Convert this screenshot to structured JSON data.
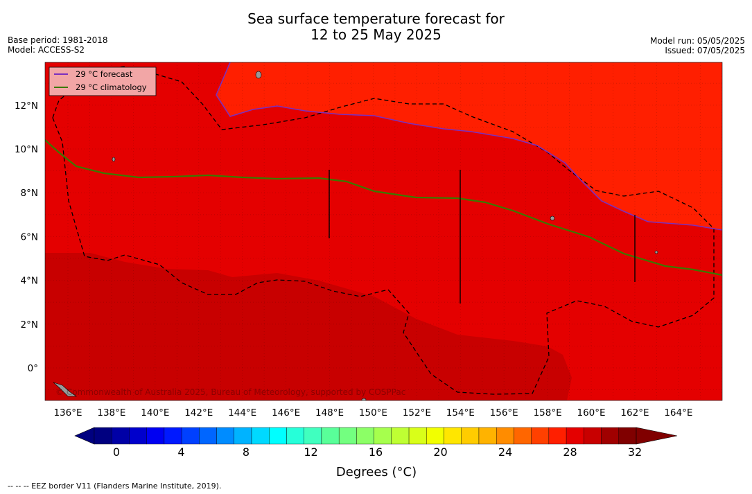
{
  "title_line1": "Sea surface temperature forecast for",
  "title_line2": "12 to 25 May 2025",
  "base_period": "Base period: 1981-2018",
  "model": "Model: ACCESS-S2",
  "model_run": "Model run: 05/05/2025",
  "issued": "Issued: 07/05/2025",
  "legend": {
    "forecast": "29 °C  forecast",
    "climatology": "29 °C  climatology",
    "forecast_color": "#7b2fbe",
    "climatology_color": "#3a7a00"
  },
  "map": {
    "lon_labels": [
      "136°E",
      "138°E",
      "140°E",
      "142°E",
      "144°E",
      "146°E",
      "148°E",
      "150°E",
      "152°E",
      "154°E",
      "156°E",
      "158°E",
      "160°E",
      "162°E",
      "164°E"
    ],
    "lat_labels": [
      "12°N",
      "10°N",
      "8°N",
      "6°N",
      "4°N",
      "2°N",
      "0°"
    ],
    "extent": {
      "lon": [
        135,
        166.1
      ],
      "lat": [
        -1.5,
        14
      ]
    },
    "colors": {
      "warm_29_30": "#e40000",
      "above_30": "#ff1f00",
      "below_29": "#c80000"
    }
  },
  "copyright": "© Commonwealth of Australia 2025, Bureau of Meteorology, supported by COSPPac",
  "colorbar": {
    "ticks": [
      "0",
      "4",
      "8",
      "12",
      "16",
      "20",
      "24",
      "28",
      "32"
    ],
    "label": "Degrees (°C)",
    "colors": [
      "#000080",
      "#0000a6",
      "#0000cc",
      "#0000f2",
      "#0019ff",
      "#0040ff",
      "#0066ff",
      "#008cff",
      "#00b3ff",
      "#00d9ff",
      "#00ffff",
      "#26ffd9",
      "#40ffbf",
      "#59ff99",
      "#73ff80",
      "#8cff66",
      "#a6ff4d",
      "#bfff33",
      "#d9ff19",
      "#f2ff00",
      "#ffe600",
      "#ffcc00",
      "#ffb300",
      "#ff8c00",
      "#ff6600",
      "#ff4000",
      "#ff1f00",
      "#e40000",
      "#c80000",
      "#a00000",
      "#800000"
    ]
  },
  "footer": "--  --  -- EEZ border V11 (Flanders Marine Institute, 2019)."
}
